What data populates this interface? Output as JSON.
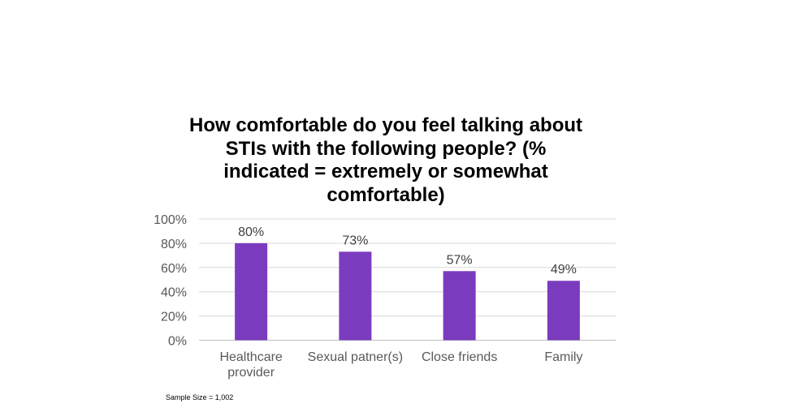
{
  "chart_data": {
    "type": "bar",
    "title": "How comfortable do you feel talking about STIs with the following people? (% indicated = extremely or somewhat comfortable)",
    "categories": [
      "Healthcare provider",
      "Sexual patner(s)",
      "Close friends",
      "Family"
    ],
    "category_lines": [
      [
        "Healthcare",
        "provider"
      ],
      [
        "Sexual patner(s)"
      ],
      [
        "Close friends"
      ],
      [
        "Family"
      ]
    ],
    "series": [
      {
        "values": [
          80,
          73,
          57,
          49
        ],
        "data_labels": [
          "80%",
          "73%",
          "57%",
          "49%"
        ],
        "color": "#7b3bbf"
      }
    ],
    "ylim": [
      0,
      100
    ],
    "yticks": [
      0,
      20,
      40,
      60,
      80,
      100
    ],
    "ytick_labels": [
      "0%",
      "20%",
      "40%",
      "60%",
      "80%",
      "100%"
    ],
    "grid": true,
    "legend": "none",
    "xlabel": "",
    "ylabel": ""
  },
  "footnote": "Sample Size = 1,002"
}
